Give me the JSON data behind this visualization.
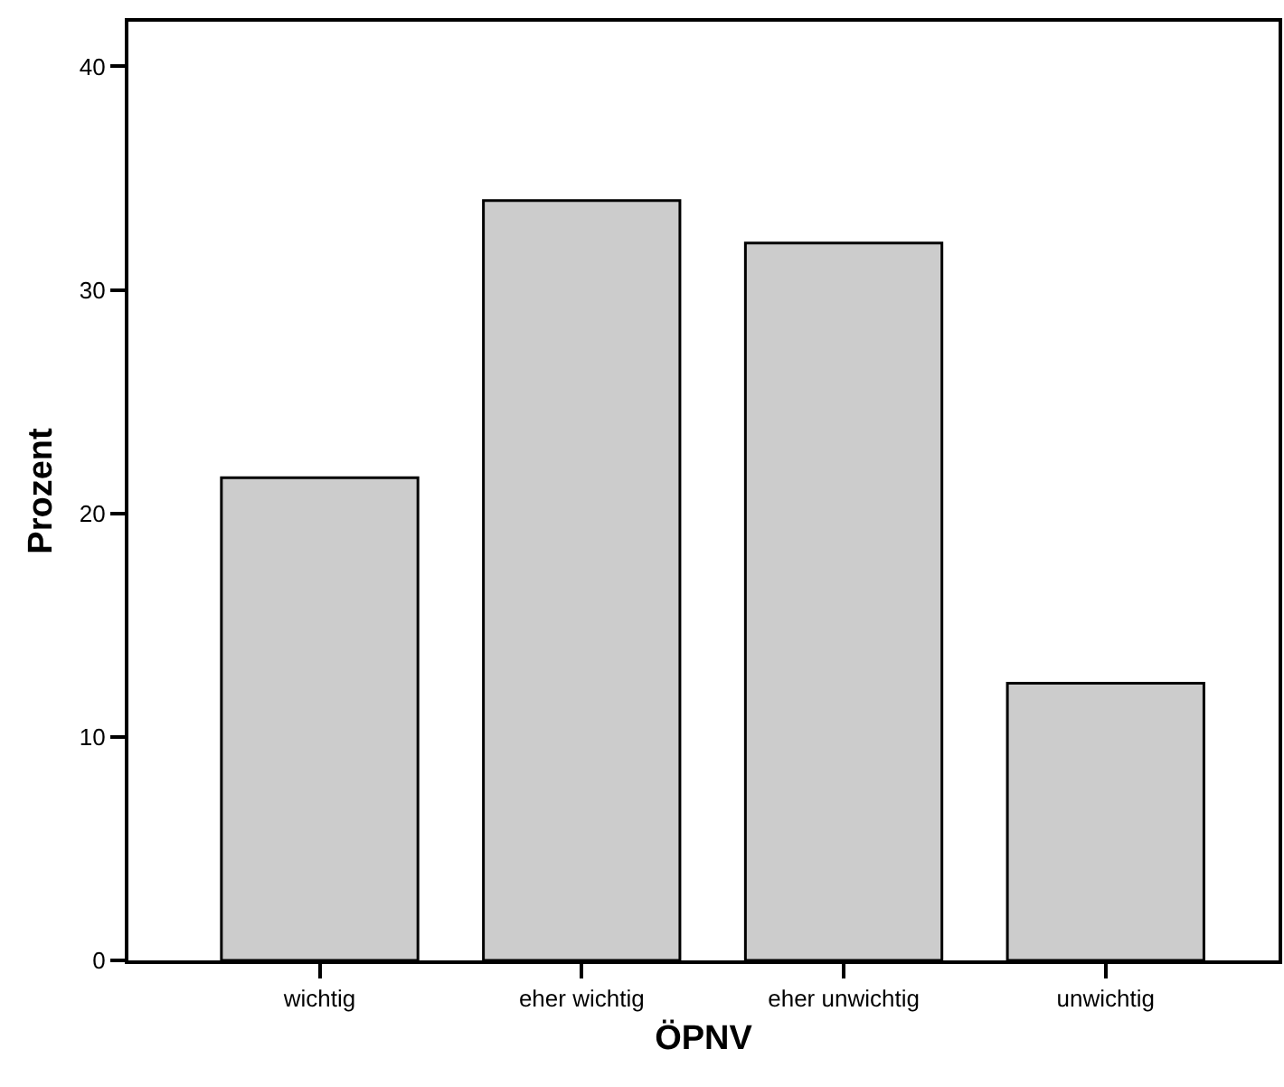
{
  "chart_data": {
    "type": "bar",
    "xlabel": "ÖPNV",
    "ylabel": "Prozent",
    "categories": [
      "wichtig",
      "eher wichtig",
      "eher unwichtig",
      "unwichtig"
    ],
    "values": [
      21.6,
      34.0,
      32.1,
      12.4
    ],
    "color": "#cccccc",
    "ylim": [
      0,
      42
    ],
    "yticks": [
      0,
      10,
      20,
      30,
      40
    ]
  }
}
